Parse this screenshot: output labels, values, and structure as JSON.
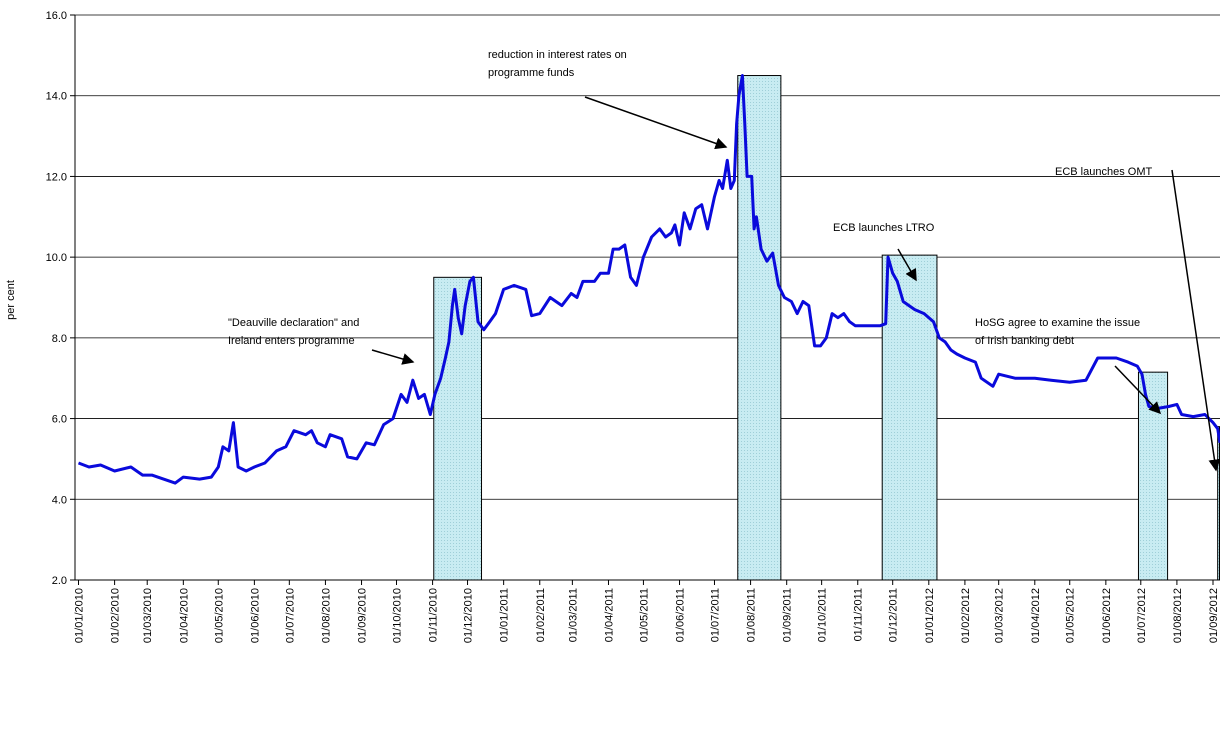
{
  "chart_data": {
    "type": "line",
    "y_label": "per cent",
    "color": "#0a0adc",
    "grid": true,
    "ylim": [
      2,
      16
    ],
    "yticks": [
      {
        "value": 2,
        "label": "2.0"
      },
      {
        "value": 4,
        "label": "4.0"
      },
      {
        "value": 6,
        "label": "6.0"
      },
      {
        "value": 8,
        "label": "8.0"
      },
      {
        "value": 10,
        "label": "10.0"
      },
      {
        "value": 12,
        "label": "12.0"
      },
      {
        "value": 14,
        "label": "14.0"
      },
      {
        "value": 16,
        "label": "16.0"
      }
    ],
    "xlim": [
      "2009-12-29",
      "2012-09-07"
    ],
    "xticks": [
      {
        "value": "2010-01-01",
        "label": "01/01/2010"
      },
      {
        "value": "2010-02-01",
        "label": "01/02/2010"
      },
      {
        "value": "2010-03-01",
        "label": "01/03/2010"
      },
      {
        "value": "2010-04-01",
        "label": "01/04/2010"
      },
      {
        "value": "2010-05-01",
        "label": "01/05/2010"
      },
      {
        "value": "2010-06-01",
        "label": "01/06/2010"
      },
      {
        "value": "2010-07-01",
        "label": "01/07/2010"
      },
      {
        "value": "2010-08-01",
        "label": "01/08/2010"
      },
      {
        "value": "2010-09-01",
        "label": "01/09/2010"
      },
      {
        "value": "2010-10-01",
        "label": "01/10/2010"
      },
      {
        "value": "2010-11-01",
        "label": "01/11/2010"
      },
      {
        "value": "2010-12-01",
        "label": "01/12/2010"
      },
      {
        "value": "2011-01-01",
        "label": "01/01/2011"
      },
      {
        "value": "2011-02-01",
        "label": "01/02/2011"
      },
      {
        "value": "2011-03-01",
        "label": "01/03/2011"
      },
      {
        "value": "2011-04-01",
        "label": "01/04/2011"
      },
      {
        "value": "2011-05-01",
        "label": "01/05/2011"
      },
      {
        "value": "2011-06-01",
        "label": "01/06/2011"
      },
      {
        "value": "2011-07-01",
        "label": "01/07/2011"
      },
      {
        "value": "2011-08-01",
        "label": "01/08/2011"
      },
      {
        "value": "2011-09-01",
        "label": "01/09/2011"
      },
      {
        "value": "2011-10-01",
        "label": "01/10/2011"
      },
      {
        "value": "2011-11-01",
        "label": "01/11/2011"
      },
      {
        "value": "2011-12-01",
        "label": "01/12/2011"
      },
      {
        "value": "2012-01-01",
        "label": "01/01/2012"
      },
      {
        "value": "2012-02-01",
        "label": "01/02/2012"
      },
      {
        "value": "2012-03-01",
        "label": "01/03/2012"
      },
      {
        "value": "2012-04-01",
        "label": "01/04/2012"
      },
      {
        "value": "2012-05-01",
        "label": "01/05/2012"
      },
      {
        "value": "2012-06-01",
        "label": "01/06/2012"
      },
      {
        "value": "2012-07-01",
        "label": "01/07/2012"
      },
      {
        "value": "2012-08-01",
        "label": "01/08/2012"
      },
      {
        "value": "2012-09-01",
        "label": "01/09/2012"
      }
    ],
    "x": [
      "2010-01-01",
      "2010-01-10",
      "2010-01-20",
      "2010-02-01",
      "2010-02-15",
      "2010-02-25",
      "2010-03-05",
      "2010-03-15",
      "2010-03-25",
      "2010-04-01",
      "2010-04-15",
      "2010-04-25",
      "2010-05-01",
      "2010-05-05",
      "2010-05-10",
      "2010-05-14",
      "2010-05-18",
      "2010-05-25",
      "2010-06-01",
      "2010-06-10",
      "2010-06-20",
      "2010-06-28",
      "2010-07-05",
      "2010-07-15",
      "2010-07-20",
      "2010-07-25",
      "2010-08-01",
      "2010-08-05",
      "2010-08-15",
      "2010-08-20",
      "2010-08-28",
      "2010-09-05",
      "2010-09-12",
      "2010-09-20",
      "2010-09-28",
      "2010-10-05",
      "2010-10-10",
      "2010-10-15",
      "2010-10-20",
      "2010-10-25",
      "2010-10-30",
      "2010-11-03",
      "2010-11-08",
      "2010-11-12",
      "2010-11-15",
      "2010-11-18",
      "2010-11-20",
      "2010-11-23",
      "2010-11-26",
      "2010-11-29",
      "2010-12-03",
      "2010-12-06",
      "2010-12-10",
      "2010-12-15",
      "2010-12-20",
      "2010-12-25",
      "2011-01-01",
      "2011-01-10",
      "2011-01-20",
      "2011-01-25",
      "2011-02-01",
      "2011-02-10",
      "2011-02-20",
      "2011-02-28",
      "2011-03-05",
      "2011-03-10",
      "2011-03-20",
      "2011-03-25",
      "2011-04-01",
      "2011-04-05",
      "2011-04-10",
      "2011-04-15",
      "2011-04-20",
      "2011-04-25",
      "2011-05-01",
      "2011-05-08",
      "2011-05-15",
      "2011-05-20",
      "2011-05-25",
      "2011-05-28",
      "2011-06-01",
      "2011-06-05",
      "2011-06-10",
      "2011-06-15",
      "2011-06-20",
      "2011-06-25",
      "2011-07-01",
      "2011-07-05",
      "2011-07-08",
      "2011-07-12",
      "2011-07-15",
      "2011-07-18",
      "2011-07-20",
      "2011-07-22",
      "2011-07-25",
      "2011-07-27",
      "2011-07-29",
      "2011-08-02",
      "2011-08-04",
      "2011-08-06",
      "2011-08-10",
      "2011-08-15",
      "2011-08-20",
      "2011-08-25",
      "2011-08-30",
      "2011-09-05",
      "2011-09-10",
      "2011-09-15",
      "2011-09-20",
      "2011-09-25",
      "2011-09-30",
      "2011-10-05",
      "2011-10-10",
      "2011-10-15",
      "2011-10-20",
      "2011-10-25",
      "2011-10-30",
      "2011-11-10",
      "2011-11-20",
      "2011-11-25",
      "2011-11-27",
      "2011-12-01",
      "2011-12-05",
      "2011-12-10",
      "2011-12-15",
      "2011-12-20",
      "2011-12-28",
      "2012-01-05",
      "2012-01-10",
      "2012-01-15",
      "2012-01-20",
      "2012-01-25",
      "2012-02-01",
      "2012-02-10",
      "2012-02-15",
      "2012-02-25",
      "2012-03-01",
      "2012-03-15",
      "2012-04-01",
      "2012-04-15",
      "2012-05-01",
      "2012-05-15",
      "2012-05-25",
      "2012-06-10",
      "2012-06-20",
      "2012-06-28",
      "2012-07-02",
      "2012-07-05",
      "2012-07-08",
      "2012-07-15",
      "2012-07-25",
      "2012-08-01",
      "2012-08-05",
      "2012-08-15",
      "2012-08-25",
      "2012-09-01",
      "2012-09-05",
      "2012-09-07"
    ],
    "values": [
      4.9,
      4.8,
      4.85,
      4.7,
      4.8,
      4.6,
      4.6,
      4.5,
      4.4,
      4.55,
      4.5,
      4.55,
      4.8,
      5.3,
      5.2,
      5.9,
      4.8,
      4.7,
      4.8,
      4.9,
      5.2,
      5.3,
      5.7,
      5.6,
      5.7,
      5.4,
      5.3,
      5.6,
      5.5,
      5.05,
      5.0,
      5.4,
      5.35,
      5.85,
      6.0,
      6.6,
      6.4,
      6.95,
      6.5,
      6.6,
      6.1,
      6.6,
      7.0,
      7.5,
      7.9,
      8.8,
      9.2,
      8.5,
      8.1,
      8.8,
      9.4,
      9.5,
      8.4,
      8.2,
      8.4,
      8.6,
      9.2,
      9.3,
      9.2,
      8.55,
      8.6,
      9.0,
      8.8,
      9.1,
      9.0,
      9.4,
      9.4,
      9.6,
      9.6,
      10.2,
      10.2,
      10.3,
      9.5,
      9.3,
      10.0,
      10.5,
      10.7,
      10.5,
      10.6,
      10.8,
      10.3,
      11.1,
      10.7,
      11.2,
      11.3,
      10.7,
      11.5,
      11.9,
      11.7,
      12.4,
      11.7,
      11.9,
      13.3,
      14.0,
      14.5,
      13.3,
      12.0,
      12.0,
      10.7,
      11.0,
      10.2,
      9.9,
      10.1,
      9.3,
      9.0,
      8.9,
      8.6,
      8.9,
      8.8,
      7.8,
      7.8,
      8.0,
      8.6,
      8.5,
      8.6,
      8.4,
      8.3,
      8.3,
      8.3,
      8.35,
      10.0,
      9.6,
      9.4,
      8.9,
      8.8,
      8.7,
      8.6,
      8.4,
      8.0,
      7.9,
      7.7,
      7.6,
      7.5,
      7.4,
      7.0,
      6.8,
      7.1,
      7.0,
      7.0,
      6.95,
      6.9,
      6.95,
      7.5,
      7.5,
      7.4,
      7.3,
      7.1,
      6.6,
      6.3,
      6.25,
      6.3,
      6.35,
      6.1,
      6.05,
      6.1,
      5.9,
      5.75,
      5.4
    ],
    "highlight_color": "#c8ecf2",
    "highlights": [
      {
        "start": "2010-11-02",
        "end": "2010-12-13",
        "top": 9.5
      },
      {
        "start": "2011-07-21",
        "end": "2011-08-27",
        "top": 14.5
      },
      {
        "start": "2011-11-22",
        "end": "2012-01-08",
        "top": 10.05
      },
      {
        "start": "2012-06-29",
        "end": "2012-07-24",
        "top": 7.15
      },
      {
        "start": "2012-09-05",
        "end": "2012-09-07",
        "top": 5.8
      }
    ],
    "annotations": [
      {
        "lines": [
          "\"Deauville declaration\" and",
          "Ireland enters programme"
        ]
      },
      {
        "lines": [
          "reduction in interest rates on",
          "programme funds"
        ]
      },
      {
        "lines": [
          "ECB launches LTRO"
        ]
      },
      {
        "lines": [
          "HoSG agree to examine the issue",
          "of Irish banking debt"
        ]
      },
      {
        "lines": [
          "ECB launches OMT"
        ]
      }
    ]
  }
}
